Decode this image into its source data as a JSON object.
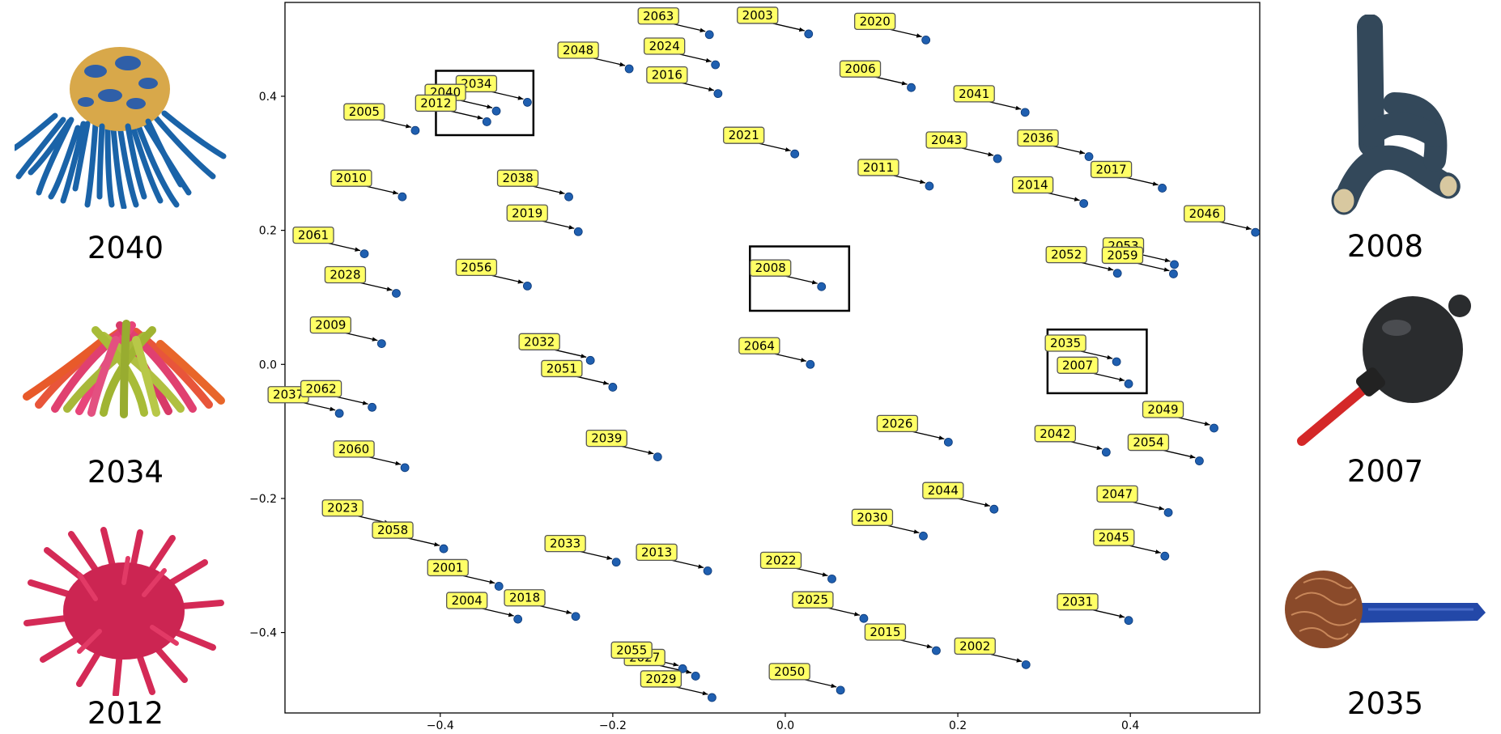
{
  "chart_data": {
    "type": "scatter",
    "title": "",
    "xlabel": "",
    "ylabel": "",
    "xlim": [
      -0.58,
      0.55
    ],
    "ylim": [
      -0.52,
      0.54
    ],
    "xticks": [
      -0.4,
      -0.2,
      0.0,
      0.2,
      0.4
    ],
    "xtick_labels": [
      "−0.4",
      "−0.2",
      "0.0",
      "0.2",
      "0.4"
    ],
    "yticks": [
      0.4,
      0.2,
      0.0,
      -0.2,
      -0.4
    ],
    "ytick_labels": [
      "0.4",
      "0.2",
      "0.0",
      "−0.2",
      "−0.4"
    ],
    "grid": false,
    "point_color": "#1f5fb0",
    "label_fill": "#ffff66",
    "points": [
      {
        "label": "2063",
        "x": -0.088,
        "y": 0.492
      },
      {
        "label": "2003",
        "x": 0.027,
        "y": 0.493
      },
      {
        "label": "2020",
        "x": 0.163,
        "y": 0.484
      },
      {
        "label": "2048",
        "x": -0.181,
        "y": 0.441
      },
      {
        "label": "2024",
        "x": -0.081,
        "y": 0.447
      },
      {
        "label": "2016",
        "x": -0.078,
        "y": 0.404
      },
      {
        "label": "2006",
        "x": 0.146,
        "y": 0.413
      },
      {
        "label": "2041",
        "x": 0.278,
        "y": 0.376
      },
      {
        "label": "2034",
        "x": -0.299,
        "y": 0.391
      },
      {
        "label": "2040",
        "x": -0.335,
        "y": 0.378
      },
      {
        "label": "2012",
        "x": -0.346,
        "y": 0.362
      },
      {
        "label": "2005",
        "x": -0.429,
        "y": 0.349
      },
      {
        "label": "2021",
        "x": 0.011,
        "y": 0.314
      },
      {
        "label": "2043",
        "x": 0.246,
        "y": 0.307
      },
      {
        "label": "2036",
        "x": 0.352,
        "y": 0.31
      },
      {
        "label": "2011",
        "x": 0.167,
        "y": 0.266
      },
      {
        "label": "2017",
        "x": 0.437,
        "y": 0.263
      },
      {
        "label": "2014",
        "x": 0.346,
        "y": 0.24
      },
      {
        "label": "2010",
        "x": -0.444,
        "y": 0.25
      },
      {
        "label": "2038",
        "x": -0.251,
        "y": 0.25
      },
      {
        "label": "2019",
        "x": -0.24,
        "y": 0.198
      },
      {
        "label": "2046",
        "x": 0.545,
        "y": 0.197
      },
      {
        "label": "2061",
        "x": -0.488,
        "y": 0.165
      },
      {
        "label": "2053",
        "x": 0.451,
        "y": 0.149
      },
      {
        "label": "2059",
        "x": 0.45,
        "y": 0.135
      },
      {
        "label": "2052",
        "x": 0.385,
        "y": 0.136
      },
      {
        "label": "2028",
        "x": -0.451,
        "y": 0.106
      },
      {
        "label": "2056",
        "x": -0.299,
        "y": 0.117
      },
      {
        "label": "2008",
        "x": 0.042,
        "y": 0.116
      },
      {
        "label": "2009",
        "x": -0.468,
        "y": 0.031
      },
      {
        "label": "2032",
        "x": -0.226,
        "y": 0.006
      },
      {
        "label": "2064",
        "x": 0.029,
        "y": 0.0
      },
      {
        "label": "2035",
        "x": 0.384,
        "y": 0.004
      },
      {
        "label": "2051",
        "x": -0.2,
        "y": -0.034
      },
      {
        "label": "2007",
        "x": 0.398,
        "y": -0.029
      },
      {
        "label": "2037",
        "x": -0.517,
        "y": -0.073
      },
      {
        "label": "2062",
        "x": -0.479,
        "y": -0.064
      },
      {
        "label": "2049",
        "x": 0.497,
        "y": -0.095
      },
      {
        "label": "2026",
        "x": 0.189,
        "y": -0.116
      },
      {
        "label": "2042",
        "x": 0.372,
        "y": -0.131
      },
      {
        "label": "2039",
        "x": -0.148,
        "y": -0.138
      },
      {
        "label": "2054",
        "x": 0.48,
        "y": -0.144
      },
      {
        "label": "2060",
        "x": -0.441,
        "y": -0.154
      },
      {
        "label": "2044",
        "x": 0.242,
        "y": -0.216
      },
      {
        "label": "2047",
        "x": 0.444,
        "y": -0.221
      },
      {
        "label": "2023",
        "x": -0.454,
        "y": -0.242
      },
      {
        "label": "2030",
        "x": 0.16,
        "y": -0.256
      },
      {
        "label": "2058",
        "x": -0.396,
        "y": -0.275
      },
      {
        "label": "2045",
        "x": 0.44,
        "y": -0.286
      },
      {
        "label": "2022",
        "x": 0.054,
        "y": -0.32
      },
      {
        "label": "2033",
        "x": -0.196,
        "y": -0.295
      },
      {
        "label": "2013",
        "x": -0.09,
        "y": -0.308
      },
      {
        "label": "2001",
        "x": -0.332,
        "y": -0.331
      },
      {
        "label": "2025",
        "x": 0.091,
        "y": -0.379
      },
      {
        "label": "2018",
        "x": -0.243,
        "y": -0.376
      },
      {
        "label": "2004",
        "x": -0.31,
        "y": -0.38
      },
      {
        "label": "2031",
        "x": 0.398,
        "y": -0.382
      },
      {
        "label": "2015",
        "x": 0.175,
        "y": -0.427
      },
      {
        "label": "2002",
        "x": 0.279,
        "y": -0.448
      },
      {
        "label": "2027",
        "x": -0.104,
        "y": -0.465
      },
      {
        "label": "2055",
        "x": -0.119,
        "y": -0.454
      },
      {
        "label": "2029",
        "x": -0.085,
        "y": -0.497
      },
      {
        "label": "2050",
        "x": 0.064,
        "y": -0.486
      }
    ],
    "highlight_boxes": [
      {
        "x0": -0.405,
        "x1": -0.292,
        "y0": 0.342,
        "y1": 0.438
      },
      {
        "x0": -0.041,
        "x1": 0.074,
        "y0": 0.08,
        "y1": 0.176
      },
      {
        "x0": 0.304,
        "x1": 0.419,
        "y0": -0.043,
        "y1": 0.052
      }
    ]
  },
  "side_panels": [
    {
      "caption": "2040",
      "icon": "squishy-ball-blue-strands-icon"
    },
    {
      "caption": "2034",
      "icon": "squishy-ball-pink-green-strands-icon"
    },
    {
      "caption": "2012",
      "icon": "spiky-pink-ball-icon"
    },
    {
      "caption": "2008",
      "icon": "knotted-foam-tube-icon"
    },
    {
      "caption": "2007",
      "icon": "air-blower-bulb-icon"
    },
    {
      "caption": "2035",
      "icon": "copper-scrubber-brush-icon"
    }
  ]
}
